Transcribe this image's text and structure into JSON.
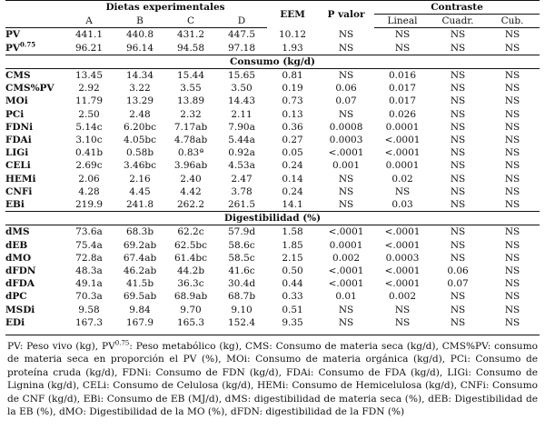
{
  "header": {
    "dietas": "Dietas experimentales",
    "eem": "EEM",
    "pvalor": "P valor",
    "contraste": "Contraste",
    "diet_cols": [
      "A",
      "B",
      "C",
      "D"
    ],
    "contrast_cols": [
      "Lineal",
      "Cuadr.",
      "Cub."
    ]
  },
  "top_rows": [
    {
      "label": "PV",
      "values": [
        "441.1",
        "440.8",
        "431.2",
        "447.5",
        "10.12",
        "NS",
        "NS",
        "NS",
        "NS"
      ]
    },
    {
      "label": "PV",
      "sup": "0.75",
      "values": [
        "96.21",
        "96.14",
        "94.58",
        "97.18",
        "1.93",
        "NS",
        "NS",
        "NS",
        "NS"
      ]
    }
  ],
  "sections": [
    {
      "title": "Consumo (kg/d)",
      "rows": [
        {
          "label": "CMS",
          "values": [
            "13.45",
            "14.34",
            "15.44",
            "15.65",
            "0.81",
            "NS",
            "0.016",
            "NS",
            "NS"
          ]
        },
        {
          "label": "CMS%PV",
          "values": [
            "2.92",
            "3.22",
            "3.55",
            "3.50",
            "0.19",
            "0.06",
            "0.017",
            "NS",
            "NS"
          ]
        },
        {
          "label": "MOi",
          "values": [
            "11.79",
            "13.29",
            "13.89",
            "14.43",
            "0.73",
            "0.07",
            "0.017",
            "NS",
            "NS"
          ]
        },
        {
          "label": "PCi",
          "values": [
            "2.50",
            "2.48",
            "2.32",
            "2.11",
            "0.13",
            "NS",
            "0.026",
            "NS",
            "NS"
          ]
        },
        {
          "label": "FDNi",
          "values": [
            "5.14c",
            "6.20bc",
            "7.17ab",
            "7.90a",
            "0.36",
            "0.0008",
            "0.0001",
            "NS",
            "NS"
          ]
        },
        {
          "label": "FDAi",
          "values": [
            "3.10c",
            "4.05bc",
            "4.78ab",
            "5.44a",
            "0.27",
            "0.0003",
            "<.0001",
            "NS",
            "NS"
          ]
        },
        {
          "label": "LIGi",
          "values": [
            "0.41b",
            "0.58b",
            "0.83ª",
            "0.92a",
            "0.05",
            "<.0001",
            "<.0001",
            "NS",
            "NS"
          ]
        },
        {
          "label": "CELi",
          "values": [
            "2.69c",
            "3.46bc",
            "3.96ab",
            "4.53a",
            "0.24",
            "0.001",
            "0.0001",
            "NS",
            "NS"
          ]
        },
        {
          "label": "HEMi",
          "values": [
            "2.06",
            "2.16",
            "2.40",
            "2.47",
            "0.14",
            "NS",
            "0.02",
            "NS",
            "NS"
          ]
        },
        {
          "label": "CNFi",
          "values": [
            "4.28",
            "4.45",
            "4.42",
            "3.78",
            "0.24",
            "NS",
            "NS",
            "NS",
            "NS"
          ]
        },
        {
          "label": "EBi",
          "values": [
            "219.9",
            "241.8",
            "262.2",
            "261.5",
            "14.1",
            "NS",
            "0.03",
            "NS",
            "NS"
          ]
        }
      ]
    },
    {
      "title": "Digestibilidad (%)",
      "rows": [
        {
          "label": "dMS",
          "values": [
            "73.6a",
            "68.3b",
            "62.2c",
            "57.9d",
            "1.58",
            "<.0001",
            "<.0001",
            "NS",
            "NS"
          ]
        },
        {
          "label": "dEB",
          "values": [
            "75.4a",
            "69.2ab",
            "62.5bc",
            "58.6c",
            "1.85",
            "0.0001",
            "<.0001",
            "NS",
            "NS"
          ]
        },
        {
          "label": "dMO",
          "values": [
            "72.8a",
            "67.4ab",
            "61.4bc",
            "58.5c",
            "2.15",
            "0.002",
            "0.0003",
            "NS",
            "NS"
          ]
        },
        {
          "label": "dFDN",
          "values": [
            "48.3a",
            "46.2ab",
            "44.2b",
            "41.6c",
            "0.50",
            "<.0001",
            "<.0001",
            "0.06",
            "NS"
          ]
        },
        {
          "label": "dFDA",
          "values": [
            "49.1a",
            "41.5b",
            "36.3c",
            "30.4d",
            "0.44",
            "<.0001",
            "<.0001",
            "0.07",
            "NS"
          ]
        },
        {
          "label": "dPC",
          "values": [
            "70.3a",
            "69.5ab",
            "68.9ab",
            "68.7b",
            "0.33",
            "0.01",
            "0.002",
            "NS",
            "NS"
          ]
        },
        {
          "label": "MSDi",
          "values": [
            "9.58",
            "9.84",
            "9.70",
            "9.10",
            "0.51",
            "NS",
            "NS",
            "NS",
            "NS"
          ]
        },
        {
          "label": "EDi",
          "values": [
            "167.3",
            "167.9",
            "165.3",
            "152.4",
            "9.35",
            "NS",
            "NS",
            "NS",
            "NS"
          ]
        }
      ]
    }
  ],
  "footnote": "PV: Peso vivo (kg), PV0.75: Peso metabólico (kg), CMS: Consumo de materia seca (kg/d), CMS%PV: consumo de materia seca en proporción el PV (%), MOi: Consumo de materia orgánica (kg/d), PCi: Consumo de proteína cruda (kg/d), FDNi: Consumo de FDN (kg/d), FDAi: Consumo de FDA (kg/d), LIGi: Consumo de Lignina (kg/d), CELi: Consumo de Celulosa (kg/d), HEMi: Consumo de Hemicelulosa (kg/d), CNFi: Consumo de CNF (kg/d), EBi: Consumo de EB (MJ/d), dMS: digestibilidad de materia seca (%), dEB: Digestibilidad de la EB (%), dMO: Digestibilidad de la MO (%), dFDN: digestibilidad de la FDN (%)"
}
